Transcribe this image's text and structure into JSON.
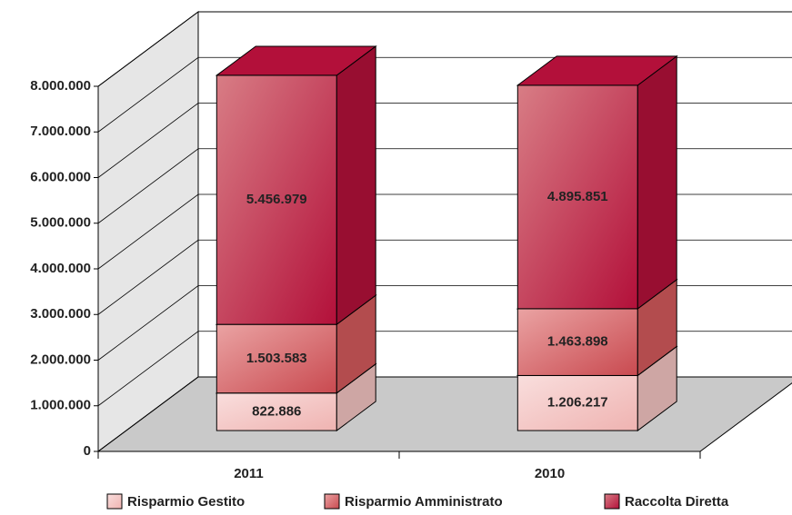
{
  "chart_data": {
    "type": "bar3d_stacked",
    "categories": [
      "2011",
      "2010"
    ],
    "series": [
      {
        "name": "Risparmio Gestito",
        "color": "#f2c3c1",
        "values": [
          822886,
          1206217
        ],
        "value_labels": [
          "822.886",
          "1.206.217"
        ]
      },
      {
        "name": "Risparmio Amministrato",
        "color": "#d35a5c",
        "values": [
          1503583,
          1463898
        ],
        "value_labels": [
          "1.503.583",
          "1.463.898"
        ]
      },
      {
        "name": "Raccolta Diretta",
        "color": "#b3103a",
        "values": [
          5456979,
          4895851
        ],
        "value_labels": [
          "5.456.979",
          "4.895.851"
        ]
      }
    ],
    "ylim": [
      0,
      8000000
    ],
    "yticks": [
      0,
      {
        "value": 1000000,
        "label": "1.000.000"
      },
      {
        "value": 2000000,
        "label": "2.000.000"
      },
      {
        "value": 3000000,
        "label": "3.000.000"
      },
      {
        "value": 4000000,
        "label": "4.000.000"
      },
      {
        "value": 5000000,
        "label": "5.000.000"
      },
      {
        "value": 6000000,
        "label": "6.000.000"
      },
      {
        "value": 7000000,
        "label": "7.000.000"
      },
      {
        "value": 8000000,
        "label": "8.000.000"
      }
    ],
    "grid": true,
    "legend": "bottom"
  }
}
